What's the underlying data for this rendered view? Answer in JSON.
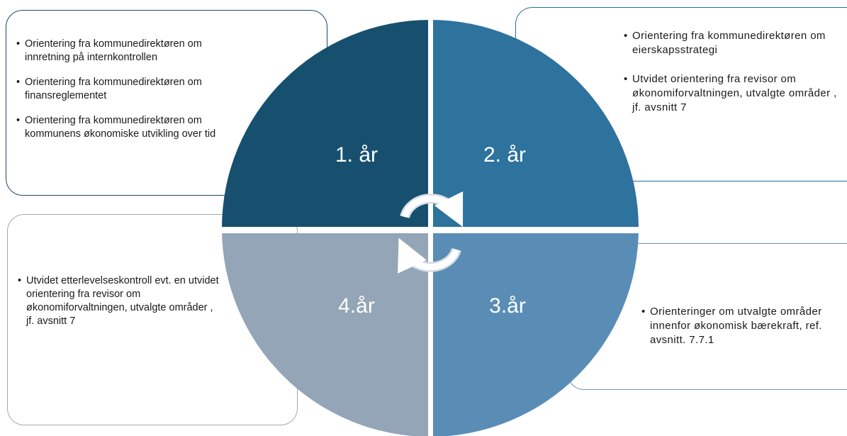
{
  "quadrants": [
    {
      "label": "1. år",
      "color": "#17506f"
    },
    {
      "label": "2. år",
      "color": "#2e729e"
    },
    {
      "label": "3.år",
      "color": "#5a8db6"
    },
    {
      "label": "4.år",
      "color": "#93a5b6"
    }
  ],
  "callouts": {
    "year1": [
      "Orientering fra kommunedirektøren om  innretning på internkontrollen",
      "Orientering fra kommunedirektøren om  finansreglementet",
      "Orientering  fra kommunedirektøren om kommunens økonomiske utvikling over tid"
    ],
    "year2": [
      "Orientering fra kommunedirektøren om eierskapsstrategi",
      "Utvidet orientering fra revisor om økonomiforvaltningen,  utvalgte områder , jf. avsnitt 7"
    ],
    "year3": [
      "Orienteringer om utvalgte områder innenfor økonomisk bærekraft, ref. avsnitt. 7.7.1"
    ],
    "year4": [
      "Utvidet etterlevelseskontroll evt. en utvidet orientering fra revisor om økonomiforvaltningen, utvalgte områder , jf. avsnitt 7"
    ]
  },
  "icons": [
    "cycle-arrow-icon"
  ]
}
